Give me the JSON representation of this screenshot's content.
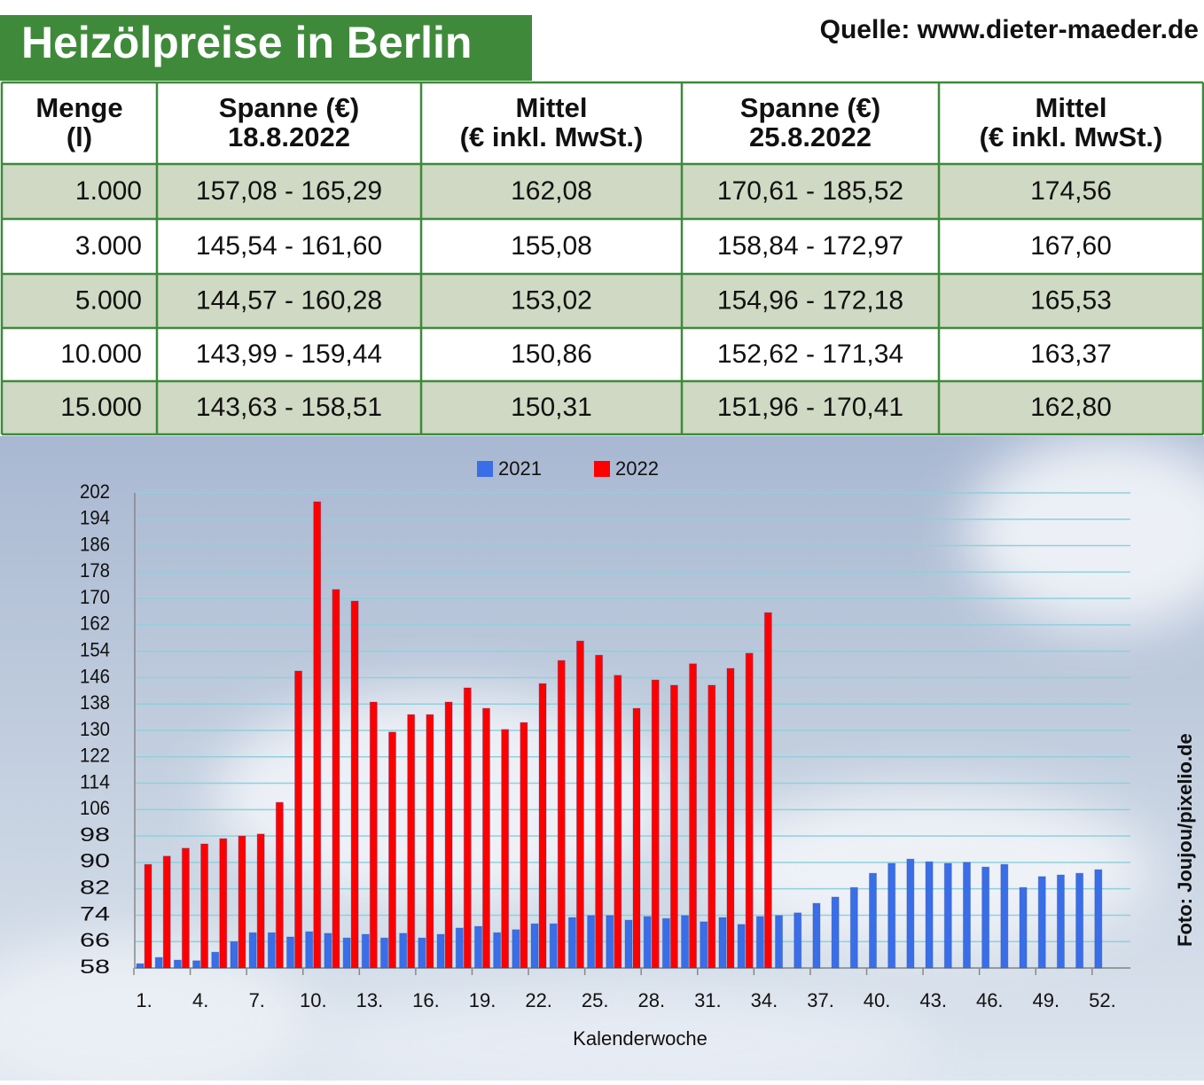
{
  "header": {
    "title": "Heizölpreise in Berlin",
    "source": "Quelle: www.dieter-maeder.de"
  },
  "table": {
    "header": [
      [
        "Menge",
        "(l)"
      ],
      [
        "Spanne (€)",
        "18.8.2022"
      ],
      [
        "Mittel",
        "(€ inkl. MwSt.)"
      ],
      [
        "Spanne (€)",
        "25.8.2022"
      ],
      [
        "Mittel",
        "(€ inkl. MwSt.)"
      ]
    ],
    "rows": [
      [
        "1.000",
        "157,08 - 165,29",
        "162,08",
        "170,61 - 185,52",
        "174,56"
      ],
      [
        "3.000",
        "145,54 - 161,60",
        "155,08",
        "158,84 - 172,97",
        "167,60"
      ],
      [
        "5.000",
        "144,57 - 160,28",
        "153,02",
        "154,96 - 172,18",
        "165,53"
      ],
      [
        "10.000",
        "143,99 - 159,44",
        "150,86",
        "152,62 - 171,34",
        "163,37"
      ],
      [
        "15.000",
        "143,63 - 158,51",
        "150,31",
        "151,96 - 170,41",
        "162,80"
      ]
    ]
  },
  "chart_data": {
    "type": "bar",
    "x_label": "Kalenderwoche",
    "categories": [
      "1.",
      null,
      null,
      "4.",
      null,
      null,
      "7.",
      null,
      null,
      "10.",
      null,
      null,
      "13.",
      null,
      null,
      "16.",
      null,
      null,
      "19.",
      null,
      null,
      "22.",
      null,
      null,
      "25.",
      null,
      null,
      "28.",
      null,
      null,
      "31.",
      null,
      null,
      "34.",
      null,
      null,
      "37.",
      null,
      null,
      "40.",
      null,
      null,
      "43.",
      null,
      null,
      "46.",
      null,
      null,
      "49.",
      null,
      null,
      "52."
    ],
    "series": [
      {
        "name": "2021",
        "color": "#3a6ee8",
        "values": [
          59.3,
          61.2,
          60.4,
          60.2,
          62.8,
          66,
          68.7,
          68.7,
          67.4,
          69,
          68.5,
          67.1,
          68.2,
          67.1,
          68.5,
          67.1,
          68.2,
          70.1,
          70.6,
          68.7,
          69.6,
          71.4,
          71.4,
          73.3,
          73.9,
          73.9,
          72.5,
          73.6,
          73,
          73.9,
          72,
          73.3,
          71.2,
          73.6,
          73.9,
          74.7,
          77.6,
          79.5,
          82.4,
          86.7,
          89.7,
          91,
          90.2,
          89.7,
          90,
          88.6,
          89.4,
          82.4,
          85.7,
          86.2,
          86.7,
          87.8
        ]
      },
      {
        "name": "2022",
        "color": "#ff0000",
        "values": [
          89.4,
          91.9,
          94.3,
          95.6,
          97.2,
          98,
          98.6,
          108.2,
          148,
          199.3,
          172.7,
          169.2,
          138.6,
          129.5,
          134.8,
          134.8,
          138.6,
          142.9,
          136.7,
          130.3,
          132.4,
          144.2,
          151.2,
          157.1,
          152.8,
          146.7,
          136.7,
          145.3,
          143.7,
          150.2,
          143.7,
          148.8,
          153.4,
          165.7,
          null,
          null,
          null,
          null,
          null,
          null,
          null,
          null,
          null,
          null,
          null,
          null,
          null,
          null,
          null,
          null,
          null,
          null
        ]
      }
    ],
    "ylim": [
      58,
      202
    ],
    "yticks": [
      58,
      66,
      74,
      82,
      90,
      98,
      106,
      114,
      122,
      130,
      138,
      146,
      154,
      162,
      170,
      178,
      186,
      194,
      202
    ],
    "grid": true
  },
  "credit": "Foto: Joujou/pixelio.de"
}
